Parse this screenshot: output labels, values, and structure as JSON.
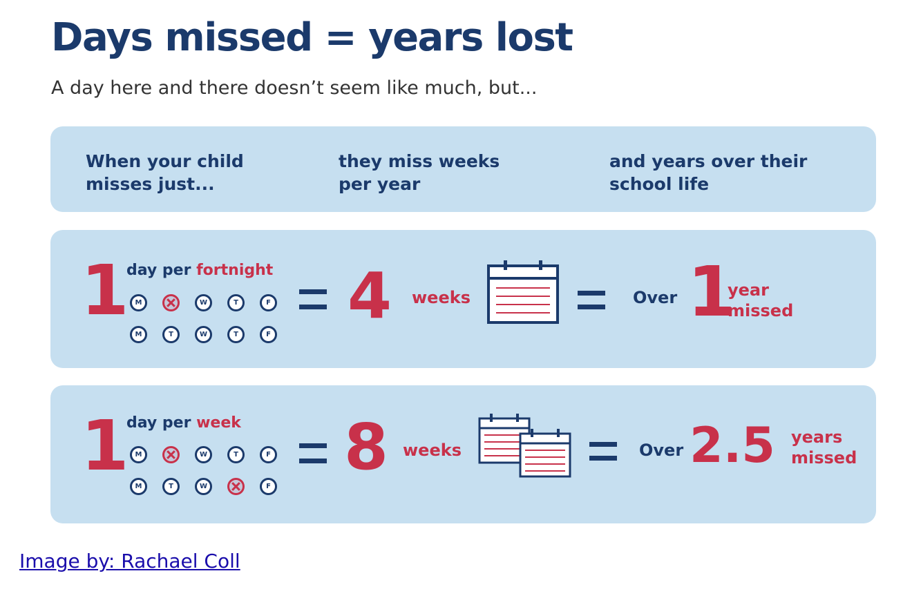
{
  "title": "Days missed = years lost",
  "subtitle": "A day here and there doesn’t seem like much, but...",
  "header": {
    "col1": "When your child\nmisses just...",
    "col2": "they miss weeks\nper year",
    "col3": "and years over their\nschool life"
  },
  "rows": [
    {
      "count": "1",
      "label_prefix": "day per ",
      "label_highlight": "fortnight",
      "weeks_value": "4",
      "weeks_label": "weeks",
      "over_label": "Over",
      "years_value": "1",
      "years_label": "year\nmissed",
      "week_days": [
        [
          {
            "letter": "M",
            "missed": false
          },
          {
            "letter": "T",
            "missed": true
          },
          {
            "letter": "W",
            "missed": false
          },
          {
            "letter": "T",
            "missed": false
          },
          {
            "letter": "F",
            "missed": false
          }
        ],
        [
          {
            "letter": "M",
            "missed": false
          },
          {
            "letter": "T",
            "missed": false
          },
          {
            "letter": "W",
            "missed": false
          },
          {
            "letter": "T",
            "missed": false
          },
          {
            "letter": "F",
            "missed": false
          }
        ]
      ]
    },
    {
      "count": "1",
      "label_prefix": "day per ",
      "label_highlight": "week",
      "weeks_value": "8",
      "weeks_label": "weeks",
      "over_label": "Over",
      "years_value": "2.5",
      "years_label": "years\nmissed",
      "week_days": [
        [
          {
            "letter": "M",
            "missed": false
          },
          {
            "letter": "T",
            "missed": true
          },
          {
            "letter": "W",
            "missed": false
          },
          {
            "letter": "T",
            "missed": false
          },
          {
            "letter": "F",
            "missed": false
          }
        ],
        [
          {
            "letter": "M",
            "missed": false
          },
          {
            "letter": "T",
            "missed": false
          },
          {
            "letter": "W",
            "missed": false
          },
          {
            "letter": "T",
            "missed": true
          },
          {
            "letter": "F",
            "missed": false
          }
        ]
      ]
    }
  ],
  "caption": "Image by: Rachael Coll",
  "colors": {
    "navy": "#1b3a6b",
    "red": "#c8314a",
    "panel": "#c6dff0"
  },
  "icons": [
    "circle-x-icon",
    "calendar-icon",
    "equals-icon"
  ]
}
